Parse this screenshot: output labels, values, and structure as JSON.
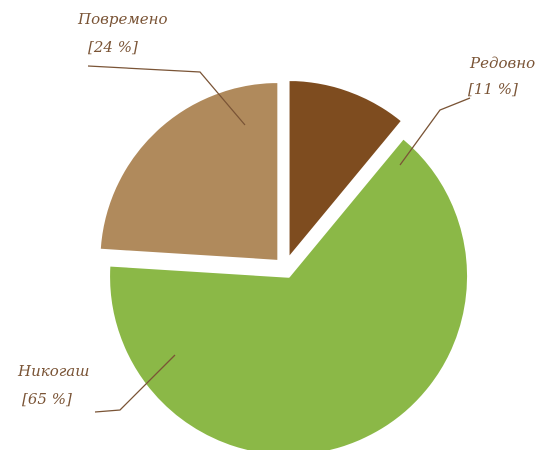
{
  "chart_data": {
    "type": "pie",
    "categories": [
      "Редовно",
      "Никогаш",
      "Повремено"
    ],
    "values": [
      11,
      65,
      24
    ],
    "value_labels": [
      "[11 %]",
      "[65 %]",
      "[24 %]"
    ],
    "colors": [
      "#7e4c1f",
      "#8bb847",
      "#b08a5c"
    ]
  }
}
